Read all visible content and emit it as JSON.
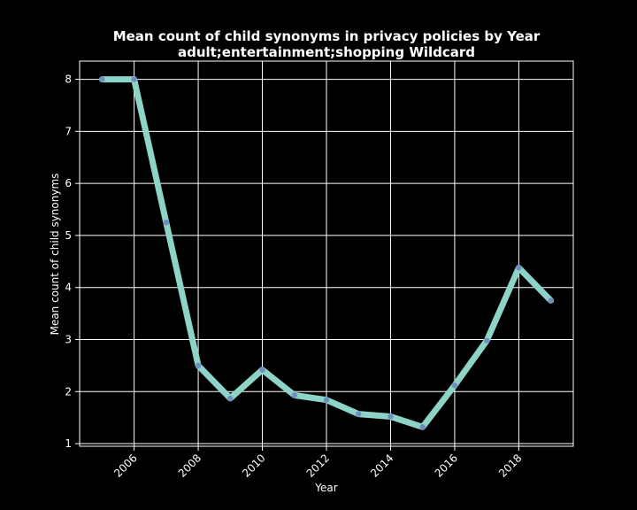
{
  "chart_data": {
    "type": "line",
    "title_line1": "Mean count of child synonyms in privacy policies by Year",
    "title_line2": "adult;entertainment;shopping Wildcard",
    "xlabel": "Year",
    "ylabel": "Mean count of child synonyms",
    "xlim": [
      2004.3,
      2019.7
    ],
    "ylim": [
      0.95,
      8.35
    ],
    "xticks": [
      2006,
      2008,
      2010,
      2012,
      2014,
      2016,
      2018
    ],
    "yticks": [
      1,
      2,
      3,
      4,
      5,
      6,
      7,
      8
    ],
    "grid": true,
    "colors": {
      "line": "#8dd3c7",
      "marker": "#6d8fbf",
      "background": "#000000",
      "grid": "#ffffff"
    },
    "series": [
      {
        "x": [
          2005,
          2006,
          2007,
          2008,
          2009,
          2010,
          2011,
          2012,
          2013,
          2014,
          2015,
          2016,
          2017,
          2018,
          2019
        ],
        "values": [
          8.0,
          8.0,
          5.25,
          2.5,
          1.87,
          2.42,
          1.93,
          1.84,
          1.57,
          1.52,
          1.32,
          2.12,
          2.98,
          4.38,
          3.75
        ]
      }
    ]
  }
}
